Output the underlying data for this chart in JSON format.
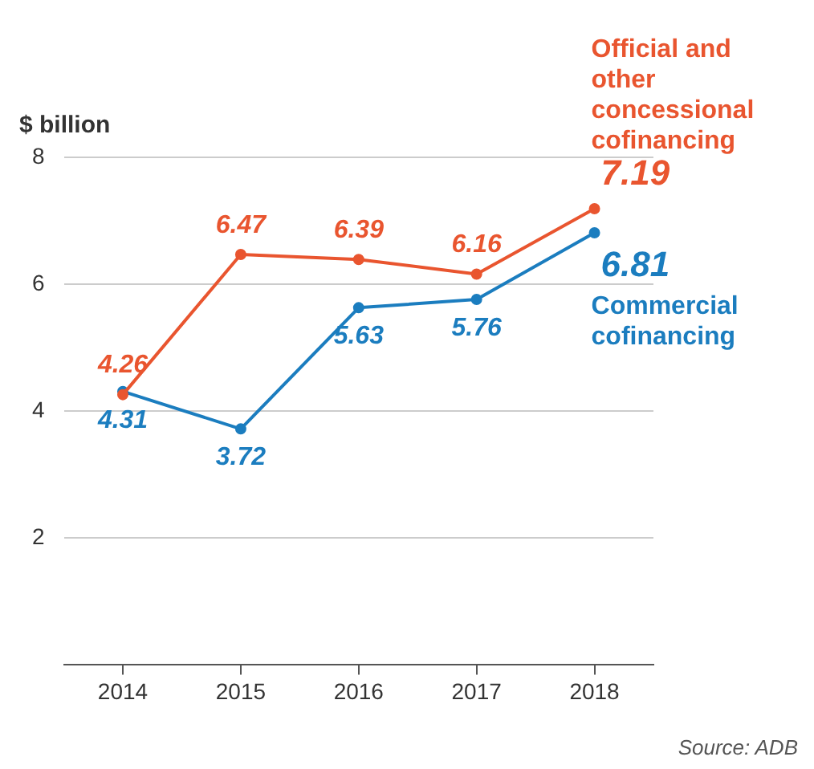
{
  "chart_data": {
    "type": "line",
    "ylabel": "$ billion",
    "categories": [
      "2014",
      "2015",
      "2016",
      "2017",
      "2018"
    ],
    "series": [
      {
        "name": "Official and other concessional cofinancing",
        "color": "#e9552f",
        "values": [
          4.26,
          6.47,
          6.39,
          6.16,
          7.19
        ]
      },
      {
        "name": "Commercial cofinancing",
        "color": "#1b7dbf",
        "values": [
          4.31,
          3.72,
          5.63,
          5.76,
          6.81
        ]
      }
    ],
    "ylim": [
      0,
      8
    ],
    "yticks": [
      2,
      4,
      6,
      8
    ],
    "grid": "y",
    "legend": false,
    "marker": "circle",
    "line_style": "solid",
    "data_labels": true,
    "annotations": [
      "Source: ADB"
    ]
  }
}
